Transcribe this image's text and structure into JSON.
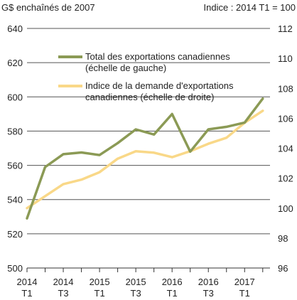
{
  "chart_data": {
    "type": "line",
    "left_axis_title": "G$ enchaînés de 2007",
    "right_axis_title": "Indice : 2014 T1 = 100",
    "x": [
      "2014 T1",
      "2014 T2",
      "2014 T3",
      "2014 T4",
      "2015 T1",
      "2015 T2",
      "2015 T3",
      "2015 T4",
      "2016 T1",
      "2016 T2",
      "2016 T3",
      "2016 T4",
      "2017 T1",
      "2017 T2"
    ],
    "x_tick_labels": [
      {
        "year": "2014",
        "quarter": "T1"
      },
      {
        "year": "2014",
        "quarter": "T3"
      },
      {
        "year": "2015",
        "quarter": "T1"
      },
      {
        "year": "2015",
        "quarter": "T3"
      },
      {
        "year": "2016",
        "quarter": "T1"
      },
      {
        "year": "2016",
        "quarter": "T3"
      },
      {
        "year": "2017",
        "quarter": "T1"
      }
    ],
    "left_ylim": [
      500,
      640
    ],
    "left_ticks": [
      500,
      520,
      540,
      560,
      580,
      600,
      620,
      640
    ],
    "right_ylim": [
      96,
      112
    ],
    "right_ticks": [
      96,
      98,
      100,
      102,
      104,
      106,
      108,
      110,
      112
    ],
    "grid": true,
    "legend_position": "top-left",
    "series": [
      {
        "name": "Total des exportations canadiennes",
        "name_line2": "(échelle de gauche)",
        "axis": "left",
        "color": "#8b9a55",
        "values": [
          529,
          559,
          566.5,
          567.5,
          566,
          573,
          581,
          578,
          590,
          568,
          581,
          582.5,
          585,
          599
        ]
      },
      {
        "name": "Indice de la demande d'exportations",
        "name_line2": "canadiennes (échelle de droite)",
        "axis": "right",
        "color": "#f9d888",
        "values": [
          100.0,
          100.8,
          101.6,
          101.9,
          102.4,
          103.3,
          103.8,
          103.7,
          103.4,
          103.8,
          104.3,
          104.7,
          105.7,
          106.5
        ]
      }
    ]
  }
}
